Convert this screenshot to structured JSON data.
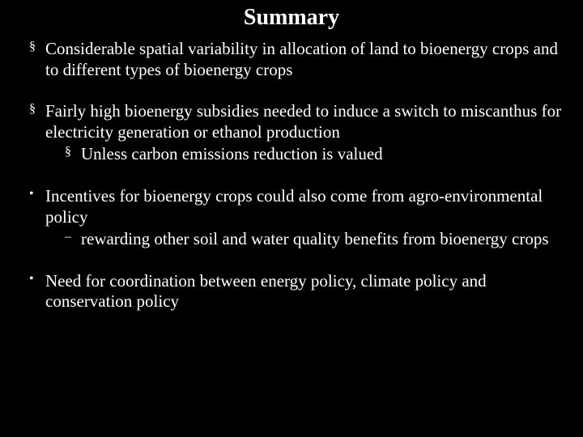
{
  "title": "Summary",
  "colors": {
    "background": "#000000",
    "text": "#ffffff"
  },
  "typography": {
    "title_fontsize": 28,
    "body_fontsize": 21,
    "font_family": "Times New Roman"
  },
  "bullets": {
    "square": "§",
    "dot": "•",
    "dash": "–"
  },
  "items": [
    {
      "marker": "square",
      "text": "Considerable spatial variability in allocation of land to bioenergy crops and to different types of bioenergy crops"
    },
    {
      "marker": "square",
      "text": "Fairly high bioenergy subsidies needed to induce a switch to miscanthus for electricity generation or ethanol production",
      "children": [
        {
          "marker": "square",
          "text": "Unless carbon emissions reduction is valued"
        }
      ]
    },
    {
      "marker": "dot",
      "text": "Incentives for bioenergy crops could also come from agro-environmental policy",
      "children": [
        {
          "marker": "dash",
          "text": "rewarding other soil and water quality benefits from bioenergy crops"
        }
      ]
    },
    {
      "marker": "dot",
      "text": "Need for coordination between energy policy, climate policy and conservation policy"
    }
  ]
}
